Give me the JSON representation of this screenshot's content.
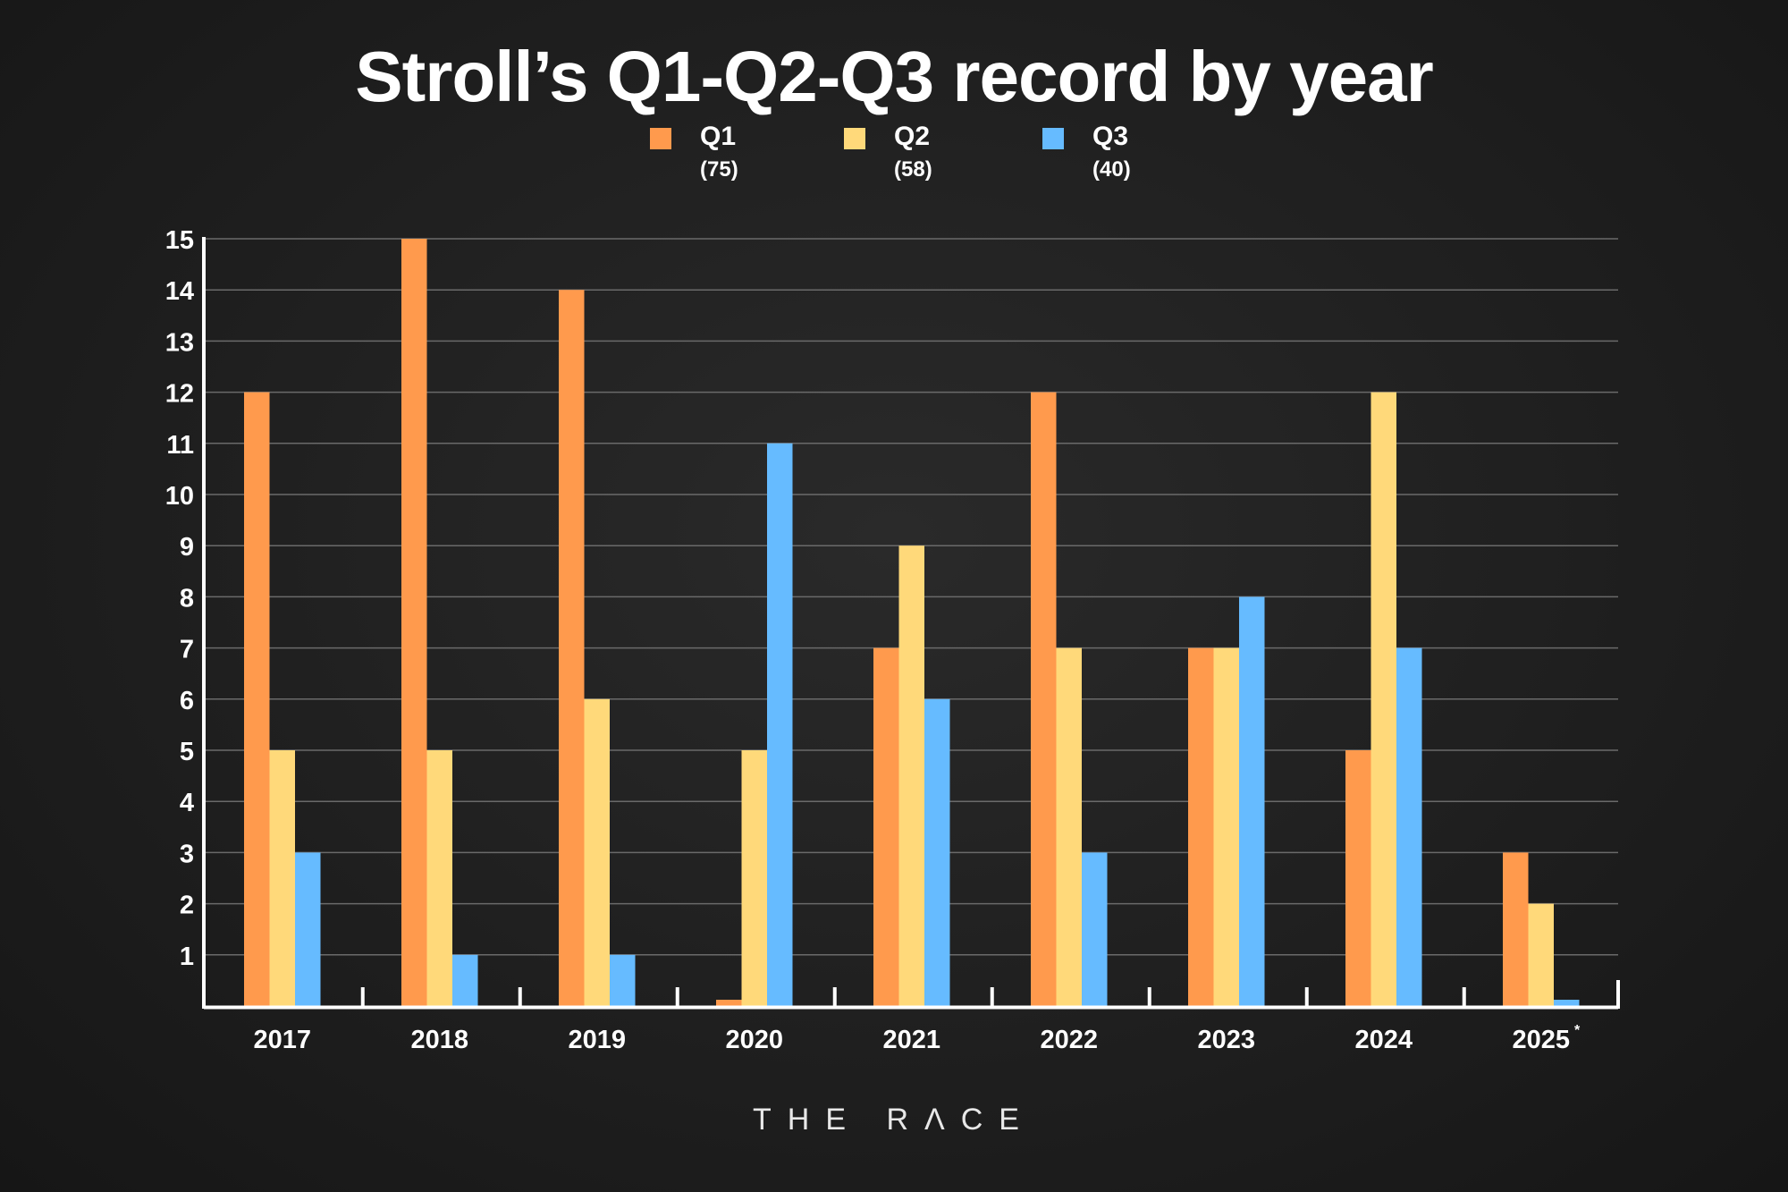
{
  "chart_data": {
    "type": "bar",
    "title": "Stroll’s Q1-Q2-Q3 record by year",
    "categories": [
      "2017",
      "2018",
      "2019",
      "2020",
      "2021",
      "2022",
      "2023",
      "2024",
      "2025"
    ],
    "category_footnote": {
      "index": 8,
      "mark": "*"
    },
    "series": [
      {
        "name": "Q1",
        "total": "(75)",
        "color": "#ff9a4d",
        "values": [
          12,
          15,
          14,
          0,
          7,
          12,
          7,
          5,
          3
        ]
      },
      {
        "name": "Q2",
        "total": "(58)",
        "color": "#ffd97a",
        "values": [
          5,
          5,
          6,
          5,
          9,
          7,
          7,
          12,
          2
        ]
      },
      {
        "name": "Q3",
        "total": "(40)",
        "color": "#66bbff",
        "values": [
          3,
          1,
          1,
          11,
          6,
          3,
          8,
          7,
          0
        ]
      }
    ],
    "yticks": [
      1,
      2,
      3,
      4,
      5,
      6,
      7,
      8,
      9,
      10,
      11,
      12,
      13,
      14,
      15
    ],
    "ylim": [
      0,
      15
    ],
    "grid": true,
    "legend_placement": "top-center"
  },
  "branding": {
    "logo_text": "THE RΛCE"
  },
  "colors": {
    "background": "#1e1e1e",
    "axis": "#ffffff",
    "grid": "#6a6a6a"
  }
}
